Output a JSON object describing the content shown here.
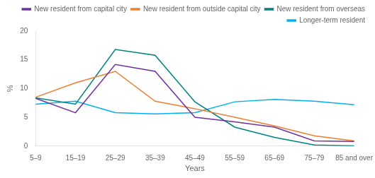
{
  "chart_data": {
    "type": "line",
    "xlabel": "Years",
    "ylabel": "%",
    "categories": [
      "5–9",
      "15–19",
      "25–29",
      "35–39",
      "45–49",
      "55–59",
      "65–69",
      "75–79",
      "85 and over"
    ],
    "series": [
      {
        "name": "New resident from capital city",
        "color": "#7030A0",
        "values": [
          8.3,
          5.8,
          14.2,
          13.0,
          5.0,
          4.2,
          3.3,
          0.9,
          0.8
        ]
      },
      {
        "name": "New resident from outside capital city",
        "color": "#ED7D31",
        "values": [
          8.5,
          11.0,
          13.0,
          7.8,
          6.5,
          5.0,
          3.5,
          1.8,
          0.9
        ]
      },
      {
        "name": "New resident from overseas",
        "color": "#008080",
        "values": [
          8.4,
          7.3,
          16.8,
          15.8,
          7.7,
          3.3,
          1.5,
          0.2,
          0.05
        ]
      },
      {
        "name": "Longer-term resident",
        "color": "#00B0F0",
        "values": [
          7.3,
          7.8,
          5.8,
          5.6,
          5.8,
          7.7,
          8.1,
          7.8,
          7.2
        ]
      }
    ],
    "ylim": [
      0,
      20
    ],
    "yticks": [
      0,
      5,
      10,
      15,
      20
    ],
    "grid": false,
    "legend": "upper right"
  }
}
